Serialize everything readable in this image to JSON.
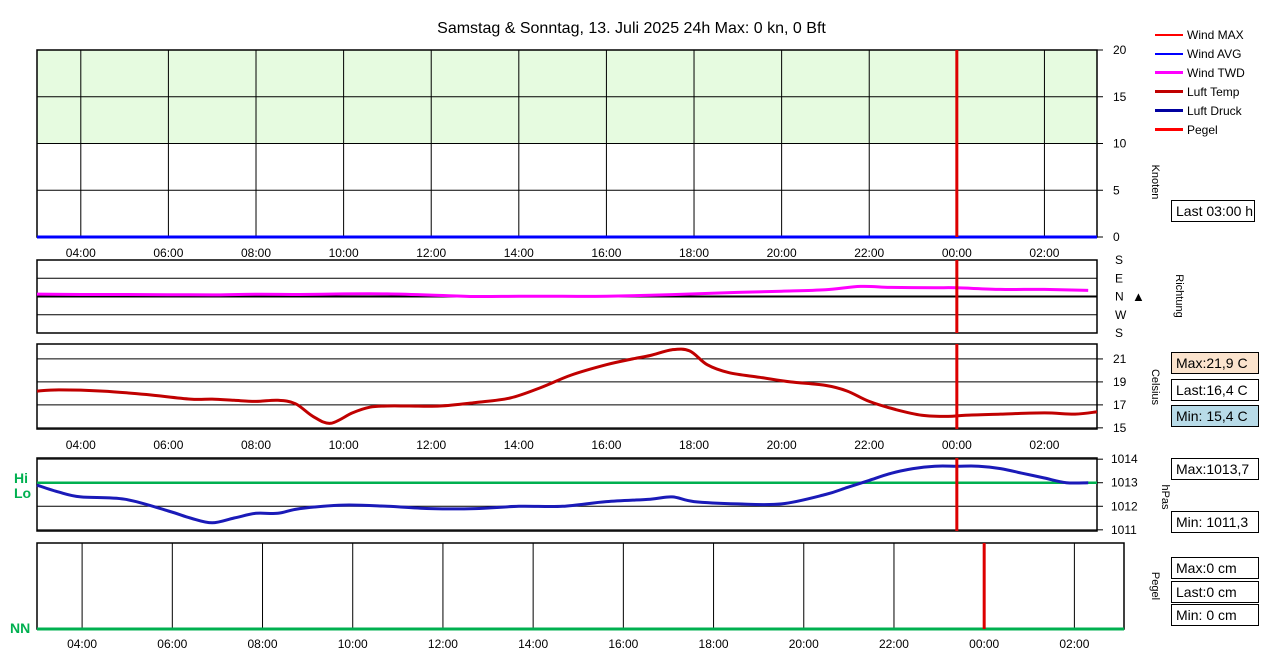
{
  "title": "Samstag & Sonntag, 13. Juli 2025 24h Max: 0 kn, 0 Bft",
  "legend": [
    {
      "label": "Wind MAX",
      "color": "#ff0000",
      "weight": 1
    },
    {
      "label": "Wind AVG",
      "color": "#0000ff",
      "weight": 1
    },
    {
      "label": "Wind TWD",
      "color": "#ff00ff",
      "weight": 2
    },
    {
      "label": "Luft Temp",
      "color": "#c00000",
      "weight": 2
    },
    {
      "label": "Luft Druck",
      "color": "#0000a0",
      "weight": 2
    },
    {
      "label": "Pegel",
      "color": "#ff0000",
      "weight": 2
    }
  ],
  "colors": {
    "marker": "#dd0000",
    "wind_band": "#e6fbe0",
    "temp": "#c00000",
    "pressure": "#1a1ab8",
    "hilo": "#00b050",
    "twd": "#ff00ff"
  },
  "wind_panel": {
    "axis_label": "Knoten",
    "last_box": "Last 03:00 h"
  },
  "dir_panel": {
    "axis_label": "Richtung",
    "indicator": "▲"
  },
  "temp_panel": {
    "axis_label": "Celsius",
    "max_box": "Max:21,9 C",
    "last_box": "Last:16,4 C",
    "min_box": "Min: 15,4 C"
  },
  "press_panel": {
    "axis_label": "hPas",
    "max_box": "Max:1013,7",
    "min_box": "Min: 1011,3",
    "hi_label": "Hi",
    "lo_label": "Lo"
  },
  "pegel_panel": {
    "axis_label": "Pegel",
    "max_box": "Max:0 cm",
    "last_box": "Last:0 cm",
    "min_box": "Min: 0 cm",
    "nn_label": "NN"
  },
  "chart_data": [
    {
      "type": "line",
      "title": "Samstag & Sonntag, 13. Juli 2025 24h Max: 0 kn, 0 Bft",
      "ylabel": "Knoten",
      "x_ticks": [
        "04:00",
        "06:00",
        "08:00",
        "10:00",
        "12:00",
        "14:00",
        "16:00",
        "18:00",
        "20:00",
        "22:00",
        "00:00",
        "02:00"
      ],
      "yticks": [
        0,
        5,
        10,
        15,
        20
      ],
      "ylim": [
        0,
        20
      ],
      "xlim_hours": [
        3.0,
        27.2
      ],
      "marker_time": "00:00",
      "highlight_band": [
        10,
        20
      ],
      "series": [
        {
          "name": "Wind MAX",
          "x": [
            3.0,
            27.2
          ],
          "y": [
            0,
            0
          ]
        },
        {
          "name": "Wind AVG",
          "x": [
            3.0,
            27.2
          ],
          "y": [
            0,
            0
          ]
        }
      ]
    },
    {
      "type": "line",
      "ylabel": "Richtung",
      "yticks": [
        "S",
        "E",
        "N",
        "W",
        "S"
      ],
      "ylim": [
        -180,
        180
      ],
      "series": [
        {
          "name": "Wind TWD",
          "x": [
            3.0,
            4.0,
            5.0,
            6.0,
            7.0,
            8.0,
            9.0,
            10.0,
            11.0,
            12.0,
            13.0,
            14.0,
            15.0,
            16.0,
            17.0,
            18.0,
            19.0,
            20.0,
            21.0,
            21.8,
            22.5,
            23.5,
            24.0,
            25.0,
            26.0,
            27.0
          ],
          "y": [
            12,
            10,
            10,
            9,
            8,
            11,
            10,
            13,
            13,
            7,
            0,
            1,
            1,
            1,
            6,
            13,
            20,
            26,
            33,
            50,
            45,
            43,
            43,
            35,
            35,
            30
          ]
        }
      ]
    },
    {
      "type": "line",
      "ylabel": "Celsius",
      "yticks": [
        15,
        17,
        19,
        21
      ],
      "ylim": [
        14.9,
        22.3
      ],
      "series": [
        {
          "name": "Luft Temp",
          "x": [
            3.0,
            3.5,
            4.5,
            5.5,
            6.5,
            7.0,
            7.5,
            8.0,
            8.5,
            8.9,
            9.3,
            9.7,
            10.2,
            10.6,
            11.0,
            11.5,
            12.2,
            13.0,
            13.8,
            14.5,
            15.2,
            16.0,
            16.6,
            17.0,
            17.5,
            17.9,
            18.3,
            18.8,
            19.5,
            20.2,
            21.0,
            21.5,
            22.0,
            22.6,
            23.2,
            23.8,
            24.2,
            25.0,
            26.0,
            26.7,
            27.2
          ],
          "y": [
            18.2,
            18.3,
            18.2,
            17.9,
            17.5,
            17.5,
            17.4,
            17.3,
            17.4,
            17.1,
            16.0,
            15.4,
            16.3,
            16.8,
            16.9,
            16.9,
            16.9,
            17.2,
            17.6,
            18.5,
            19.6,
            20.5,
            21.0,
            21.3,
            21.8,
            21.7,
            20.5,
            19.8,
            19.4,
            19.0,
            18.7,
            18.2,
            17.3,
            16.6,
            16.1,
            16.0,
            16.1,
            16.2,
            16.3,
            16.2,
            16.4
          ]
        }
      ]
    },
    {
      "type": "line",
      "ylabel": "hPas",
      "yticks": [
        1011,
        1012,
        1013,
        1014
      ],
      "ylim": [
        1010.95,
        1014.05
      ],
      "reference_line": 1013,
      "series": [
        {
          "name": "Luft Druck",
          "x": [
            3.0,
            3.5,
            4.0,
            5.0,
            6.0,
            6.5,
            7.0,
            7.5,
            8.0,
            8.5,
            9.0,
            10.0,
            11.0,
            12.0,
            13.0,
            14.0,
            15.0,
            16.0,
            17.0,
            17.5,
            18.0,
            19.0,
            20.0,
            21.0,
            21.5,
            22.0,
            22.5,
            23.0,
            23.5,
            24.0,
            24.5,
            25.0,
            25.5,
            26.0,
            26.5,
            27.0
          ],
          "y": [
            1012.9,
            1012.6,
            1012.4,
            1012.3,
            1011.8,
            1011.5,
            1011.3,
            1011.5,
            1011.7,
            1011.7,
            1011.9,
            1012.05,
            1012.0,
            1011.9,
            1011.9,
            1012.0,
            1012.0,
            1012.2,
            1012.3,
            1012.4,
            1012.2,
            1012.1,
            1012.1,
            1012.5,
            1012.8,
            1013.1,
            1013.4,
            1013.6,
            1013.7,
            1013.7,
            1013.7,
            1013.6,
            1013.4,
            1013.2,
            1013.0,
            1013.0
          ]
        }
      ]
    },
    {
      "type": "line",
      "ylabel": "Pegel",
      "x_ticks": [
        "04:00",
        "06:00",
        "08:00",
        "10:00",
        "12:00",
        "14:00",
        "16:00",
        "18:00",
        "20:00",
        "22:00",
        "00:00",
        "02:00"
      ],
      "series": [
        {
          "name": "Pegel",
          "x": [
            3.0,
            26.5
          ],
          "y": [
            0,
            0
          ]
        }
      ]
    }
  ]
}
